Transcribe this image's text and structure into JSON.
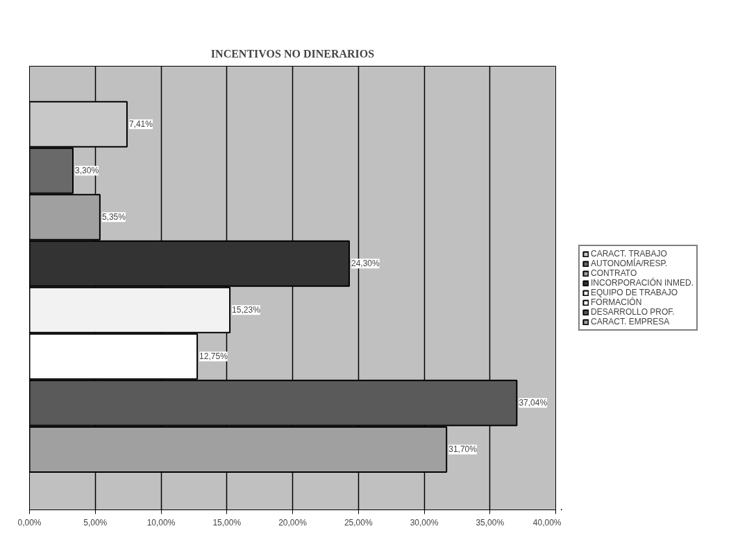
{
  "chart_data": {
    "type": "bar",
    "title": "INCENTIVOS NO DINERARIOS",
    "orientation": "horizontal",
    "categories": [
      null
    ],
    "series": [
      {
        "name": "CARACT. TRABAJO",
        "color": "#c8c8c8",
        "values": [
          7.41
        ],
        "value_labels": [
          "7,41%"
        ]
      },
      {
        "name": "AUTONOMÍA/RESP.",
        "color": "#696969",
        "values": [
          3.3
        ],
        "value_labels": [
          "3,30%"
        ]
      },
      {
        "name": "CONTRATO",
        "color": "#a0a0a0",
        "values": [
          5.35
        ],
        "value_labels": [
          "5,35%"
        ]
      },
      {
        "name": "INCORPORACIÓN INMED.",
        "color": "#333333",
        "values": [
          24.3
        ],
        "value_labels": [
          "24,30%"
        ]
      },
      {
        "name": "EQUIPO DE TRABAJO",
        "color": "#f2f2f2",
        "values": [
          15.23
        ],
        "value_labels": [
          "15,23%"
        ]
      },
      {
        "name": "FORMACIÓN",
        "color": "#ffffff",
        "values": [
          12.75
        ],
        "value_labels": [
          "12,75%"
        ]
      },
      {
        "name": "DESARROLLO PROF.",
        "color": "#5a5a5a",
        "values": [
          37.04
        ],
        "value_labels": [
          "37,04%"
        ]
      },
      {
        "name": "CARACT. EMPRESA",
        "color": "#a0a0a0",
        "values": [
          31.7
        ],
        "value_labels": [
          "31,70%"
        ]
      }
    ],
    "xlim": [
      0,
      40
    ],
    "xticks": [
      {
        "value": 0,
        "label": "0,00%"
      },
      {
        "value": 5,
        "label": "5,00%"
      },
      {
        "value": 10,
        "label": "10,00%"
      },
      {
        "value": 15,
        "label": "15,00%"
      },
      {
        "value": 20,
        "label": "20,00%"
      },
      {
        "value": 25,
        "label": "25,00%"
      },
      {
        "value": 30,
        "label": "30,00%"
      },
      {
        "value": 35,
        "label": "35,00%"
      },
      {
        "value": 40,
        "label": "40,00%"
      }
    ],
    "grid": "x",
    "legend": "right",
    "tick_labels": "x"
  }
}
